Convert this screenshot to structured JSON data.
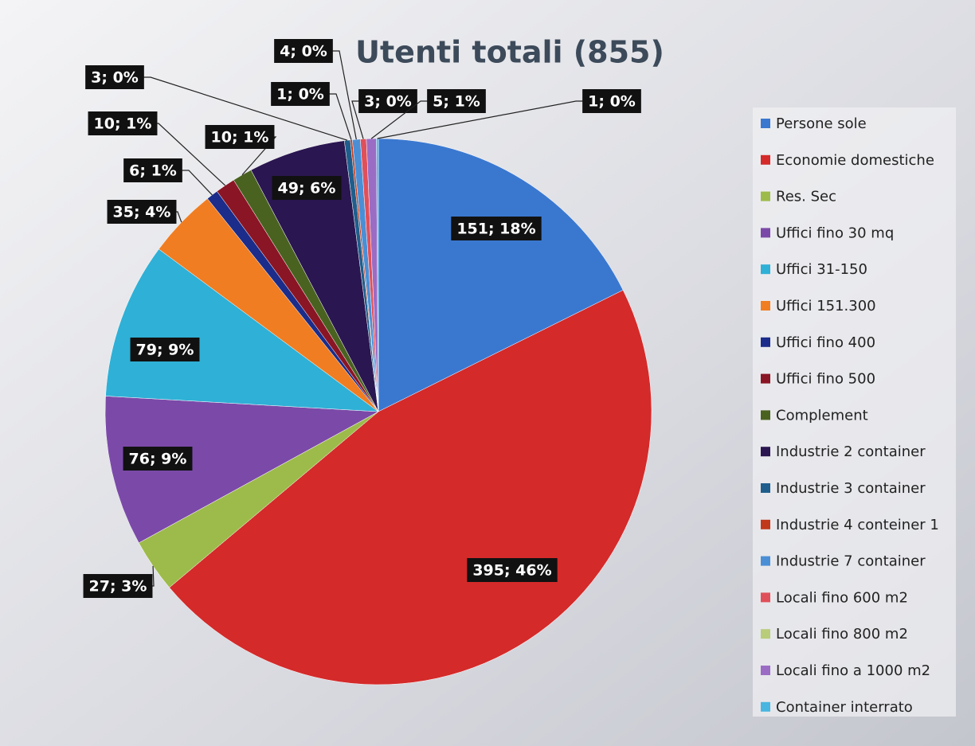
{
  "chart_data": {
    "type": "pie",
    "title": "Utenti totali (855)",
    "categories": [
      "Persone sole",
      "Economie domestiche",
      "Res. Sec",
      "Uffici fino 30 mq",
      "Uffici 31-150",
      "Uffici 151.300",
      "Uffici fino 400",
      "Uffici fino 500",
      "Complement",
      "Industrie 2 container",
      "Industrie 3 container",
      "Industrie 4 conteiner 1",
      "Industrie 7 container",
      "Locali fino 600 m2",
      "Locali fino 800 m2",
      "Locali fino a 1000 m2",
      "Container interrato"
    ],
    "values": [
      151,
      395,
      27,
      76,
      79,
      35,
      6,
      10,
      10,
      49,
      3,
      1,
      4,
      3,
      null,
      5,
      1
    ],
    "value_labels": [
      "151; 18%",
      "395; 46%",
      "27; 3%",
      "76; 9%",
      "79; 9%",
      "35; 4%",
      "6; 1%",
      "10; 1%",
      "10; 1%",
      "49; 6%",
      "3; 0%",
      "1; 0%",
      "4; 0%",
      "3; 0%",
      null,
      "5; 1%",
      "1; 0%"
    ],
    "colors": [
      "#3a78d0",
      "#d42a2a",
      "#9dbb4a",
      "#7b4aa8",
      "#2fb0d6",
      "#f07d22",
      "#1b2c8a",
      "#8a1525",
      "#4a6220",
      "#2a1650",
      "#1f5e8c",
      "#c0391b",
      "#4a8fd6",
      "#e0505a",
      "#b8cc7a",
      "#9b6cc4",
      "#48b6e0"
    ],
    "legend": "right"
  }
}
